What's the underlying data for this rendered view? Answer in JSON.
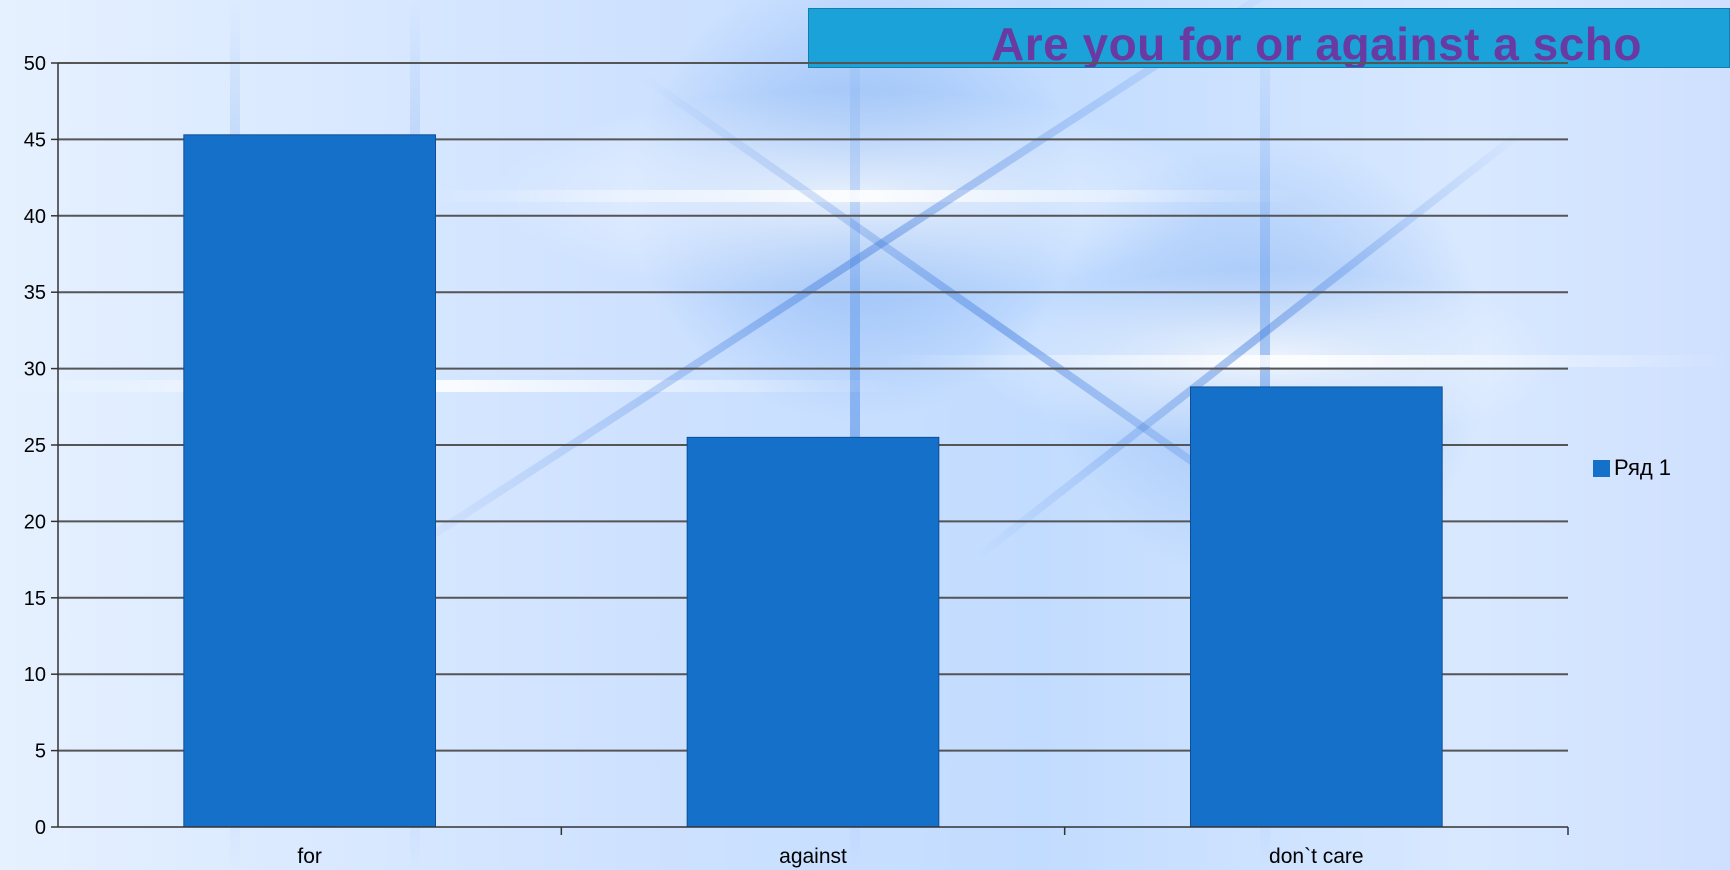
{
  "chart_data": {
    "type": "bar",
    "title": "Are you for or against a scho",
    "categories": [
      "for",
      "against",
      "don`t care"
    ],
    "series": [
      {
        "name": "Ряд 1",
        "values": [
          45.3,
          25.5,
          28.8
        ],
        "color": "#1470c8"
      }
    ],
    "ylim": [
      0,
      50
    ],
    "yticks": [
      0,
      5,
      10,
      15,
      20,
      25,
      30,
      35,
      40,
      45,
      50
    ],
    "grid": true,
    "legend_position": "right",
    "xlabel": "",
    "ylabel": ""
  }
}
